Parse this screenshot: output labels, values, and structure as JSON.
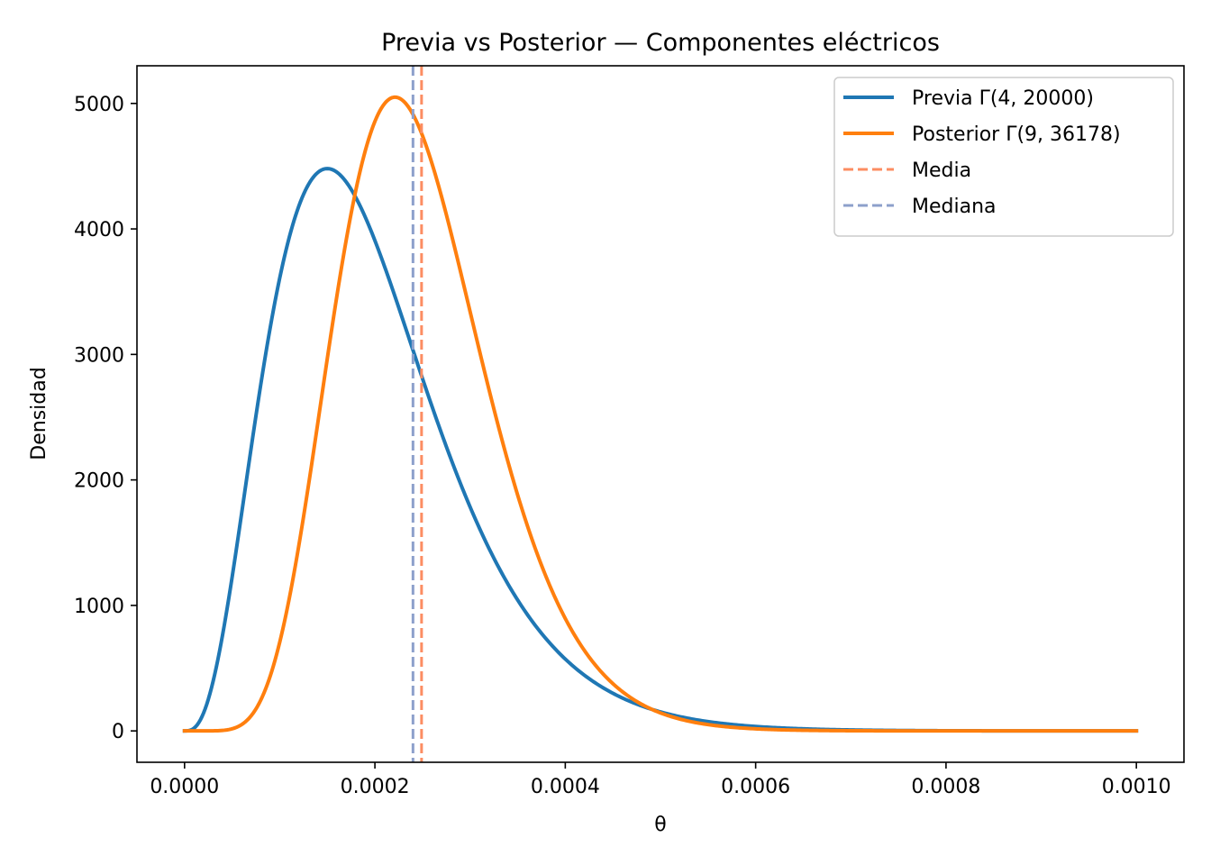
{
  "chart_data": {
    "type": "line",
    "title": "Previa vs Posterior — Componentes eléctricos",
    "xlabel": "θ",
    "ylabel": "Densidad",
    "xlim": [
      -5e-05,
      0.00105
    ],
    "ylim": [
      -250,
      5300
    ],
    "xticks": [
      0.0,
      0.0002,
      0.0004,
      0.0006,
      0.0008,
      0.001
    ],
    "xtick_labels": [
      "0.0000",
      "0.0002",
      "0.0004",
      "0.0006",
      "0.0008",
      "0.0010"
    ],
    "yticks": [
      0,
      1000,
      2000,
      3000,
      4000,
      5000
    ],
    "ytick_labels": [
      "0",
      "1000",
      "2000",
      "3000",
      "4000",
      "5000"
    ],
    "grid": false,
    "legend_position": "top-right",
    "x_range": [
      0.0,
      0.001
    ],
    "series": [
      {
        "name": "Previa Γ(4, 20000)",
        "kind": "gamma_pdf",
        "shape": 4,
        "rate": 20000,
        "color": "#1f77b4",
        "style": "solid"
      },
      {
        "name": "Posterior Γ(9, 36178)",
        "kind": "gamma_pdf",
        "shape": 9,
        "rate": 36178,
        "color": "#ff7f0e",
        "style": "solid"
      },
      {
        "name": "Media",
        "kind": "vline",
        "x": 0.000249,
        "color": "#fc8d62",
        "style": "dashed"
      },
      {
        "name": "Mediana",
        "kind": "vline",
        "x": 0.00024,
        "color": "#8da0cb",
        "style": "dashed"
      }
    ]
  }
}
